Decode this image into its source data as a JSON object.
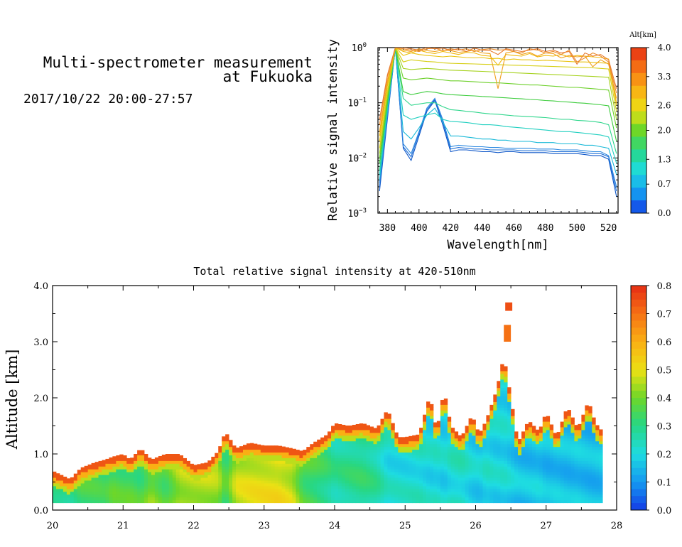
{
  "header": {
    "title_line1": "Multi-spectrometer measurement",
    "title_line2": "at Fukuoka",
    "datetime": "2017/10/22 20:00-27:57"
  },
  "chart_data": [
    {
      "type": "line",
      "xlabel": "Wavelength[nm]",
      "ylabel": "Relative signal intensity",
      "xlim": [
        374,
        526
      ],
      "ylim": [
        0.001,
        1
      ],
      "yscale": "log",
      "x_ticks": [
        "380",
        "400",
        "420",
        "440",
        "460",
        "480",
        "500",
        "520"
      ],
      "y_ticks": [
        {
          "base": "10",
          "exp": "0",
          "value": 1
        },
        {
          "base": "10",
          "exp": "−1",
          "value": 0.1
        },
        {
          "base": "10",
          "exp": "−2",
          "value": 0.01
        },
        {
          "base": "10",
          "exp": "−3",
          "value": 0.001
        }
      ],
      "colorbar": {
        "label": "Alt[km]",
        "ticks": [
          "4.0",
          "3.3",
          "2.6",
          "2.0",
          "1.3",
          "0.7",
          "0.0"
        ],
        "range": [
          0.0,
          4.0
        ]
      },
      "x": [
        375,
        380,
        385,
        390,
        395,
        400,
        405,
        410,
        415,
        420,
        425,
        430,
        435,
        440,
        445,
        450,
        455,
        460,
        465,
        470,
        475,
        480,
        485,
        490,
        495,
        500,
        505,
        510,
        515,
        520,
        525
      ],
      "series": [
        {
          "altitude_km": 0.0,
          "color": "#0b55c8",
          "values": [
            0.0025,
            0.05,
            1.0,
            0.015,
            0.009,
            0.025,
            0.07,
            0.11,
            0.04,
            0.013,
            0.014,
            0.014,
            0.0135,
            0.013,
            0.013,
            0.0125,
            0.013,
            0.013,
            0.0125,
            0.0125,
            0.0125,
            0.0125,
            0.012,
            0.012,
            0.012,
            0.012,
            0.0115,
            0.011,
            0.011,
            0.0095,
            0.002
          ]
        },
        {
          "altitude_km": 0.3,
          "color": "#1f6fd6",
          "values": [
            0.003,
            0.055,
            1.0,
            0.016,
            0.0105,
            0.028,
            0.075,
            0.115,
            0.045,
            0.0145,
            0.0155,
            0.015,
            0.0145,
            0.0145,
            0.014,
            0.014,
            0.014,
            0.014,
            0.0135,
            0.0135,
            0.0135,
            0.0135,
            0.013,
            0.013,
            0.013,
            0.013,
            0.0125,
            0.012,
            0.012,
            0.0105,
            0.0025
          ]
        },
        {
          "altitude_km": 0.6,
          "color": "#2d89e0",
          "values": [
            0.0035,
            0.06,
            1.0,
            0.018,
            0.012,
            0.03,
            0.08,
            0.12,
            0.05,
            0.016,
            0.017,
            0.0165,
            0.016,
            0.016,
            0.0155,
            0.0155,
            0.015,
            0.015,
            0.015,
            0.015,
            0.0145,
            0.0145,
            0.0145,
            0.014,
            0.014,
            0.014,
            0.0135,
            0.013,
            0.013,
            0.011,
            0.003
          ]
        },
        {
          "altitude_km": 1.0,
          "color": "#19b9d8",
          "values": [
            0.004,
            0.07,
            1.0,
            0.03,
            0.022,
            0.035,
            0.06,
            0.08,
            0.045,
            0.025,
            0.025,
            0.024,
            0.023,
            0.022,
            0.022,
            0.021,
            0.021,
            0.02,
            0.02,
            0.02,
            0.019,
            0.019,
            0.019,
            0.018,
            0.018,
            0.018,
            0.017,
            0.017,
            0.016,
            0.015,
            0.005
          ]
        },
        {
          "altitude_km": 1.2,
          "color": "#20cfc0",
          "values": [
            0.005,
            0.08,
            1.0,
            0.06,
            0.05,
            0.055,
            0.06,
            0.065,
            0.05,
            0.046,
            0.045,
            0.044,
            0.042,
            0.04,
            0.04,
            0.039,
            0.037,
            0.036,
            0.035,
            0.034,
            0.033,
            0.032,
            0.031,
            0.03,
            0.03,
            0.029,
            0.028,
            0.027,
            0.026,
            0.024,
            0.008
          ]
        },
        {
          "altitude_km": 1.5,
          "color": "#2fd68c",
          "values": [
            0.006,
            0.09,
            1.0,
            0.12,
            0.09,
            0.095,
            0.1,
            0.1,
            0.085,
            0.075,
            0.073,
            0.07,
            0.068,
            0.065,
            0.063,
            0.062,
            0.06,
            0.058,
            0.057,
            0.056,
            0.055,
            0.054,
            0.052,
            0.05,
            0.05,
            0.048,
            0.047,
            0.046,
            0.044,
            0.04,
            0.012
          ]
        },
        {
          "altitude_km": 1.8,
          "color": "#3ccc3c",
          "values": [
            0.008,
            0.1,
            1.0,
            0.16,
            0.14,
            0.15,
            0.16,
            0.155,
            0.145,
            0.14,
            0.138,
            0.135,
            0.133,
            0.13,
            0.128,
            0.125,
            0.123,
            0.12,
            0.118,
            0.115,
            0.113,
            0.11,
            0.108,
            0.105,
            0.103,
            0.1,
            0.098,
            0.095,
            0.092,
            0.088,
            0.02
          ]
        },
        {
          "altitude_km": 2.0,
          "color": "#6dd02a",
          "values": [
            0.01,
            0.12,
            1.0,
            0.28,
            0.26,
            0.27,
            0.28,
            0.27,
            0.26,
            0.25,
            0.25,
            0.245,
            0.24,
            0.235,
            0.23,
            0.23,
            0.225,
            0.22,
            0.215,
            0.21,
            0.21,
            0.205,
            0.2,
            0.195,
            0.19,
            0.19,
            0.185,
            0.18,
            0.175,
            0.17,
            0.035
          ]
        },
        {
          "altitude_km": 2.3,
          "color": "#a6d21e",
          "values": [
            0.012,
            0.14,
            1.0,
            0.42,
            0.4,
            0.41,
            0.42,
            0.41,
            0.4,
            0.39,
            0.385,
            0.38,
            0.375,
            0.37,
            0.365,
            0.36,
            0.355,
            0.35,
            0.345,
            0.34,
            0.335,
            0.33,
            0.325,
            0.32,
            0.315,
            0.31,
            0.305,
            0.3,
            0.295,
            0.29,
            0.05
          ]
        },
        {
          "altitude_km": 2.6,
          "color": "#d6cf14",
          "values": [
            0.015,
            0.16,
            1.0,
            0.55,
            0.6,
            0.58,
            0.56,
            0.55,
            0.53,
            0.52,
            0.515,
            0.51,
            0.505,
            0.5,
            0.495,
            0.49,
            0.485,
            0.48,
            0.475,
            0.47,
            0.465,
            0.46,
            0.455,
            0.45,
            0.445,
            0.44,
            0.435,
            0.43,
            0.42,
            0.41,
            0.07
          ]
        },
        {
          "altitude_km": 2.9,
          "color": "#e9c20e",
          "values": [
            0.02,
            0.2,
            1.0,
            0.72,
            0.8,
            0.75,
            0.72,
            0.7,
            0.68,
            0.7,
            0.68,
            0.66,
            0.65,
            0.66,
            0.63,
            0.64,
            0.6,
            0.62,
            0.6,
            0.6,
            0.58,
            0.59,
            0.58,
            0.57,
            0.56,
            0.55,
            0.55,
            0.54,
            0.53,
            0.52,
            0.09
          ]
        },
        {
          "altitude_km": 3.2,
          "color": "#f0b80c",
          "values": [
            0.025,
            0.22,
            1.0,
            0.85,
            0.8,
            0.9,
            0.82,
            0.78,
            0.85,
            0.8,
            0.75,
            0.82,
            0.8,
            0.72,
            0.7,
            0.48,
            0.75,
            0.72,
            0.7,
            0.78,
            0.68,
            0.72,
            0.7,
            0.75,
            0.68,
            0.72,
            0.7,
            0.68,
            0.66,
            0.62,
            0.1
          ]
        },
        {
          "altitude_km": 3.5,
          "color": "#f0a21e",
          "values": [
            0.03,
            0.25,
            1.0,
            0.9,
            0.85,
            0.95,
            0.88,
            0.85,
            0.9,
            0.88,
            0.82,
            0.85,
            0.9,
            0.8,
            0.78,
            0.18,
            0.8,
            0.85,
            0.75,
            0.82,
            0.7,
            0.8,
            0.78,
            0.65,
            0.72,
            0.68,
            0.7,
            0.45,
            0.6,
            0.5,
            0.12
          ]
        },
        {
          "altitude_km": 3.8,
          "color": "#ec8c2a",
          "values": [
            0.04,
            0.3,
            1.0,
            0.95,
            0.9,
            0.85,
            0.95,
            0.98,
            0.88,
            0.95,
            0.9,
            0.95,
            0.85,
            0.92,
            0.95,
            0.9,
            0.92,
            0.85,
            0.8,
            0.95,
            0.9,
            0.8,
            0.85,
            0.75,
            0.9,
            0.55,
            0.65,
            0.8,
            0.7,
            0.55,
            0.15
          ]
        },
        {
          "altitude_km": 4.0,
          "color": "#e87c30",
          "values": [
            0.05,
            0.32,
            1.0,
            1.0,
            0.95,
            0.9,
            1.0,
            0.95,
            0.98,
            0.9,
            0.95,
            0.85,
            0.98,
            0.9,
            0.88,
            0.75,
            0.95,
            0.9,
            0.85,
            0.9,
            0.95,
            0.85,
            0.9,
            0.8,
            0.85,
            0.5,
            0.8,
            0.7,
            0.75,
            0.6,
            0.18
          ]
        }
      ]
    },
    {
      "type": "heatmap",
      "title": "Total relative signal intensity at 420-510nm",
      "xlabel": "",
      "ylabel": "Altitude [km]",
      "xlim": [
        20,
        28
      ],
      "ylim": [
        0.0,
        4.0
      ],
      "x_ticks": [
        "20",
        "21",
        "22",
        "23",
        "24",
        "25",
        "26",
        "27",
        "28"
      ],
      "y_ticks": [
        "0.0",
        "1.0",
        "2.0",
        "3.0",
        "4.0"
      ],
      "colorbar": {
        "ticks": [
          "0.8",
          "0.7",
          "0.6",
          "0.5",
          "0.4",
          "0.3",
          "0.2",
          "0.1",
          "0.0"
        ],
        "range": [
          0.0,
          0.8
        ]
      },
      "data_extent": {
        "time_start": 20.0,
        "time_end": 27.8,
        "alt_min": 0.13
      },
      "column_time_hours": [
        20.0,
        20.25,
        20.4,
        20.6,
        20.75,
        20.85,
        21.0,
        21.1,
        21.25,
        21.4,
        21.6,
        21.8,
        22.0,
        22.2,
        22.35,
        22.45,
        22.6,
        22.8,
        23.0,
        23.2,
        23.4,
        23.55,
        23.7,
        23.9,
        24.0,
        24.2,
        24.4,
        24.6,
        24.75,
        24.9,
        25.0,
        25.2,
        25.35,
        25.45,
        25.55,
        25.65,
        25.8,
        25.95,
        26.05,
        26.15,
        26.3,
        26.4,
        26.5,
        26.6,
        26.75,
        26.9,
        27.0,
        27.15,
        27.3,
        27.45,
        27.6,
        27.7,
        27.8
      ],
      "boundary_layer_top_km": [
        0.7,
        0.55,
        0.75,
        0.85,
        0.9,
        0.95,
        1.0,
        0.9,
        1.1,
        0.9,
        1.0,
        1.0,
        0.8,
        0.85,
        1.05,
        1.4,
        1.1,
        1.2,
        1.15,
        1.15,
        1.1,
        1.05,
        1.2,
        1.35,
        1.55,
        1.5,
        1.55,
        1.45,
        1.8,
        1.3,
        1.3,
        1.35,
        2.05,
        1.4,
        2.15,
        1.5,
        1.3,
        1.7,
        1.35,
        1.6,
        2.15,
        2.75,
        2.0,
        1.2,
        1.6,
        1.4,
        1.75,
        1.3,
        1.85,
        1.45,
        1.95,
        1.55,
        1.4
      ],
      "column_mean_intensity": [
        0.33,
        0.3,
        0.34,
        0.33,
        0.32,
        0.36,
        0.35,
        0.36,
        0.34,
        0.42,
        0.36,
        0.45,
        0.46,
        0.45,
        0.43,
        0.33,
        0.46,
        0.48,
        0.49,
        0.5,
        0.47,
        0.36,
        0.34,
        0.3,
        0.27,
        0.29,
        0.3,
        0.27,
        0.21,
        0.21,
        0.21,
        0.22,
        0.2,
        0.21,
        0.19,
        0.22,
        0.23,
        0.19,
        0.18,
        0.21,
        0.19,
        0.2,
        0.18,
        0.16,
        0.16,
        0.17,
        0.15,
        0.16,
        0.15,
        0.16,
        0.15,
        0.15,
        0.16
      ],
      "upper_patches": [
        {
          "time": 26.45,
          "alt_low": 3.0,
          "alt_high": 3.3,
          "value": 0.7
        },
        {
          "time": 26.47,
          "alt_low": 3.55,
          "alt_high": 3.7,
          "value": 0.75
        }
      ]
    }
  ]
}
